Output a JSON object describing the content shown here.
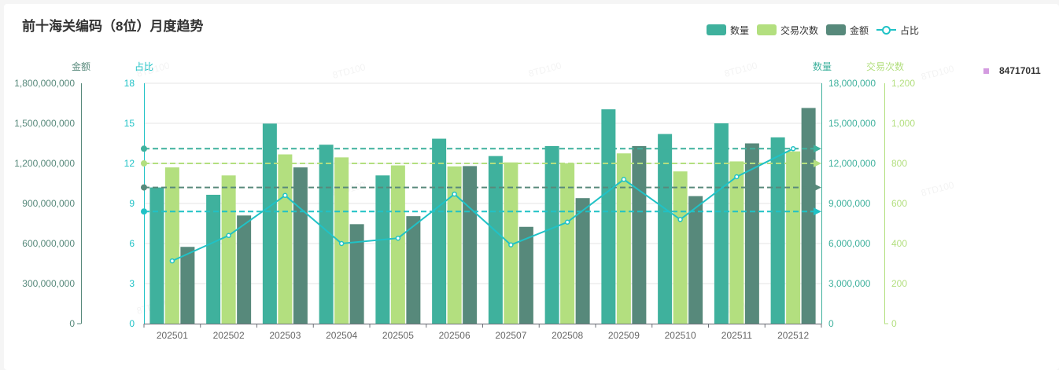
{
  "title": "前十海关编码（8位）月度趋势",
  "colors": {
    "quantity": "#3fb19d",
    "trades": "#b3df7f",
    "amount": "#57897b",
    "ratio": "#20c2c6",
    "grid": "#e6e6e6",
    "side_legend": "#d49be0"
  },
  "legend": [
    {
      "label": "数量",
      "kind": "bar",
      "color": "#3fb19d"
    },
    {
      "label": "交易次数",
      "kind": "bar",
      "color": "#b3df7f"
    },
    {
      "label": "金额",
      "kind": "bar",
      "color": "#57897b"
    },
    {
      "label": "占比",
      "kind": "line",
      "color": "#20c2c6"
    }
  ],
  "side_legend": {
    "label": "84717011",
    "color": "#d49be0"
  },
  "watermark": "8TD100",
  "chart_data": {
    "type": "bar",
    "title": "前十海关编码（8位）月度趋势",
    "categories": [
      "202501",
      "202502",
      "202503",
      "202504",
      "202505",
      "202506",
      "202507",
      "202508",
      "202509",
      "202510",
      "202511",
      "202512"
    ],
    "axes": {
      "amount": {
        "name": "金额",
        "min": 0,
        "max": 1800000000,
        "ticks": [
          "0",
          "300,000,000",
          "600,000,000",
          "900,000,000",
          "1,200,000,000",
          "1,500,000,000",
          "1,800,000,000"
        ]
      },
      "ratio": {
        "name": "占比",
        "min": 0,
        "max": 18,
        "ticks": [
          "0",
          "3",
          "6",
          "9",
          "12",
          "15",
          "18"
        ]
      },
      "quantity": {
        "name": "数量",
        "min": 0,
        "max": 18000000,
        "ticks": [
          "0",
          "3,000,000",
          "6,000,000",
          "9,000,000",
          "12,000,000",
          "15,000,000",
          "18,000,000"
        ]
      },
      "trades": {
        "name": "交易次数",
        "min": 0,
        "max": 1200,
        "ticks": [
          "0",
          "200",
          "400",
          "600",
          "800",
          "1,000",
          "1,200"
        ]
      }
    },
    "series": [
      {
        "name": "数量",
        "type": "bar",
        "axis": "quantity",
        "values": [
          10200000,
          9650000,
          14980000,
          13400000,
          11100000,
          13850000,
          12550000,
          13300000,
          16050000,
          14200000,
          15000000,
          13950000
        ]
      },
      {
        "name": "交易次数",
        "type": "bar",
        "axis": "trades",
        "values": [
          780,
          740,
          845,
          830,
          790,
          785,
          805,
          800,
          850,
          760,
          810,
          860
        ]
      },
      {
        "name": "金额",
        "type": "bar",
        "axis": "amount",
        "values": [
          575000000,
          810000000,
          1170000000,
          745000000,
          805000000,
          1180000000,
          725000000,
          940000000,
          1330000000,
          955000000,
          1350000000,
          1615000000
        ]
      },
      {
        "name": "占比",
        "type": "line",
        "axis": "ratio",
        "values": [
          4.7,
          6.6,
          9.6,
          6.0,
          6.4,
          9.7,
          5.9,
          7.6,
          10.8,
          7.8,
          11.0,
          13.1
        ]
      }
    ],
    "reference_lines": [
      {
        "series": "数量",
        "axis": "quantity",
        "value": 13100000,
        "color": "#3fb19d"
      },
      {
        "series": "交易次数",
        "axis": "trades",
        "value": 800,
        "color": "#b3df7f"
      },
      {
        "series": "金额",
        "axis": "amount",
        "value": 1020000000,
        "color": "#57897b"
      },
      {
        "series": "占比",
        "axis": "ratio",
        "value": 8.4,
        "color": "#20c2c6"
      }
    ]
  }
}
